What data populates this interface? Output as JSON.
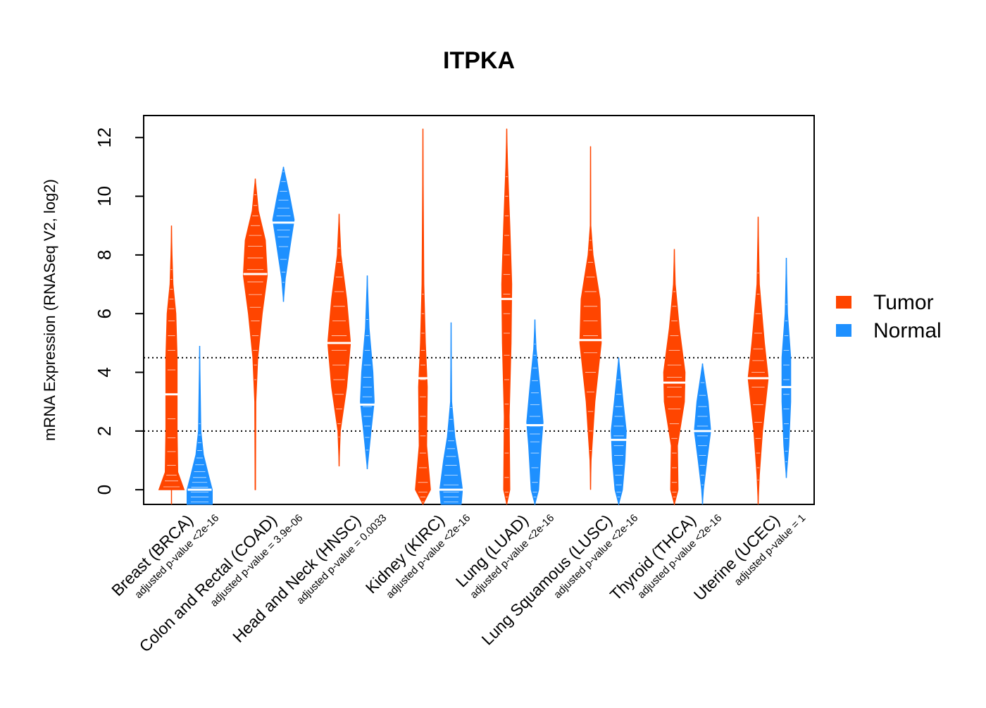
{
  "chart_data": {
    "type": "violin",
    "title": "ITPKA",
    "ylabel": "mRNA Expression (RNASeq V2, log2)",
    "xlabel": "",
    "ylim": [
      -0.5,
      12.75
    ],
    "yticks": [
      0,
      2,
      4,
      6,
      8,
      10,
      12
    ],
    "reference_lines": [
      2,
      4.5
    ],
    "legend": {
      "placement": "right",
      "items": [
        {
          "name": "Tumor",
          "color": "#ff4500"
        },
        {
          "name": "Normal",
          "color": "#1e90ff"
        }
      ]
    },
    "categories": [
      {
        "label": "Breast (BRCA)",
        "pvalue": "adjusted p-value <2e-16",
        "tumor": {
          "min": -0.5,
          "max": 9.0,
          "median": 3.25,
          "profile": [
            [
              0.0,
              1.0
            ],
            [
              0.6,
              0.5
            ],
            [
              2.0,
              0.45
            ],
            [
              4.5,
              0.45
            ],
            [
              6.0,
              0.35
            ],
            [
              7.0,
              0.12
            ],
            [
              8.0,
              0.05
            ],
            [
              9.0,
              0.0
            ]
          ]
        },
        "normal": {
          "min": -0.5,
          "max": 4.9,
          "median": 0.0,
          "profile": [
            [
              -0.5,
              1.0
            ],
            [
              0.0,
              1.0
            ],
            [
              0.5,
              0.7
            ],
            [
              1.2,
              0.3
            ],
            [
              2.0,
              0.1
            ],
            [
              3.5,
              0.05
            ],
            [
              4.9,
              0.0
            ]
          ]
        }
      },
      {
        "label": "Colon and Rectal (COAD)",
        "pvalue": "adjusted p-value = 3.9e-06",
        "tumor": {
          "min": 0.0,
          "max": 10.6,
          "median": 7.35,
          "profile": [
            [
              0.0,
              0.02
            ],
            [
              3.0,
              0.05
            ],
            [
              4.5,
              0.2
            ],
            [
              6.0,
              0.55
            ],
            [
              7.3,
              0.95
            ],
            [
              8.5,
              0.8
            ],
            [
              9.5,
              0.25
            ],
            [
              10.6,
              0.0
            ]
          ]
        },
        "normal": {
          "min": 6.4,
          "max": 11.0,
          "median": 9.1,
          "profile": [
            [
              6.4,
              0.0
            ],
            [
              7.2,
              0.15
            ],
            [
              8.5,
              0.6
            ],
            [
              9.2,
              0.85
            ],
            [
              10.0,
              0.5
            ],
            [
              11.0,
              0.0
            ]
          ]
        }
      },
      {
        "label": "Head and Neck (HNSC)",
        "pvalue": "adjusted p-value = 0.0033",
        "tumor": {
          "min": 0.8,
          "max": 9.4,
          "median": 5.0,
          "profile": [
            [
              0.8,
              0.0
            ],
            [
              2.0,
              0.1
            ],
            [
              3.5,
              0.6
            ],
            [
              5.0,
              0.9
            ],
            [
              6.5,
              0.6
            ],
            [
              8.0,
              0.15
            ],
            [
              9.4,
              0.0
            ]
          ]
        },
        "normal": {
          "min": 0.7,
          "max": 7.3,
          "median": 2.9,
          "profile": [
            [
              0.7,
              0.0
            ],
            [
              2.0,
              0.3
            ],
            [
              3.0,
              0.55
            ],
            [
              4.0,
              0.45
            ],
            [
              5.5,
              0.15
            ],
            [
              7.3,
              0.0
            ]
          ]
        }
      },
      {
        "label": "Kidney (KIRC)",
        "pvalue": "adjusted p-value <2e-16",
        "tumor": {
          "min": -0.5,
          "max": 12.3,
          "median": 3.8,
          "profile": [
            [
              -0.5,
              0.0
            ],
            [
              0.0,
              0.6
            ],
            [
              1.5,
              0.3
            ],
            [
              3.5,
              0.35
            ],
            [
              5.0,
              0.2
            ],
            [
              7.0,
              0.08
            ],
            [
              12.3,
              0.0
            ]
          ]
        },
        "normal": {
          "min": -0.5,
          "max": 5.7,
          "median": 0.0,
          "profile": [
            [
              -0.5,
              0.8
            ],
            [
              0.0,
              0.9
            ],
            [
              1.0,
              0.6
            ],
            [
              1.8,
              0.3
            ],
            [
              3.0,
              0.05
            ],
            [
              5.7,
              0.0
            ]
          ]
        }
      },
      {
        "label": "Lung (LUAD)",
        "pvalue": "adjusted p-value <2e-16",
        "tumor": {
          "min": -0.5,
          "max": 12.3,
          "median": 6.5,
          "profile": [
            [
              -0.5,
              0.0
            ],
            [
              0.0,
              0.25
            ],
            [
              2.5,
              0.2
            ],
            [
              5.0,
              0.35
            ],
            [
              7.0,
              0.4
            ],
            [
              9.0,
              0.25
            ],
            [
              11.0,
              0.08
            ],
            [
              12.3,
              0.0
            ]
          ]
        },
        "normal": {
          "min": -0.5,
          "max": 5.8,
          "median": 2.2,
          "profile": [
            [
              -0.5,
              0.0
            ],
            [
              0.0,
              0.3
            ],
            [
              1.5,
              0.5
            ],
            [
              2.3,
              0.65
            ],
            [
              3.5,
              0.4
            ],
            [
              4.8,
              0.1
            ],
            [
              5.8,
              0.0
            ]
          ]
        }
      },
      {
        "label": "Lung Squamous (LUSC)",
        "pvalue": "adjusted p-value <2e-16",
        "tumor": {
          "min": 0.0,
          "max": 11.7,
          "median": 5.1,
          "profile": [
            [
              0.0,
              0.0
            ],
            [
              1.0,
              0.05
            ],
            [
              3.0,
              0.35
            ],
            [
              5.0,
              0.85
            ],
            [
              6.5,
              0.75
            ],
            [
              8.0,
              0.2
            ],
            [
              9.0,
              0.03
            ],
            [
              11.7,
              0.0
            ]
          ]
        },
        "normal": {
          "min": -0.5,
          "max": 4.5,
          "median": 1.7,
          "profile": [
            [
              -0.5,
              0.0
            ],
            [
              0.0,
              0.3
            ],
            [
              1.0,
              0.5
            ],
            [
              2.0,
              0.6
            ],
            [
              3.0,
              0.35
            ],
            [
              4.5,
              0.0
            ]
          ]
        }
      },
      {
        "label": "Thyroid (THCA)",
        "pvalue": "adjusted p-value <2e-16",
        "tumor": {
          "min": -0.5,
          "max": 8.2,
          "median": 3.65,
          "profile": [
            [
              -0.5,
              0.0
            ],
            [
              0.0,
              0.3
            ],
            [
              1.5,
              0.25
            ],
            [
              3.0,
              0.8
            ],
            [
              4.0,
              0.85
            ],
            [
              5.5,
              0.4
            ],
            [
              7.0,
              0.08
            ],
            [
              8.2,
              0.0
            ]
          ]
        },
        "normal": {
          "min": -0.5,
          "max": 4.3,
          "median": 2.0,
          "profile": [
            [
              -0.5,
              0.0
            ],
            [
              0.0,
              0.08
            ],
            [
              1.0,
              0.35
            ],
            [
              2.0,
              0.65
            ],
            [
              3.0,
              0.45
            ],
            [
              4.3,
              0.0
            ]
          ]
        }
      },
      {
        "label": "Uterine (UCEC)",
        "pvalue": "adjusted p-value = 1",
        "tumor": {
          "min": -0.5,
          "max": 9.3,
          "median": 3.8,
          "profile": [
            [
              -0.5,
              0.0
            ],
            [
              0.5,
              0.1
            ],
            [
              2.0,
              0.35
            ],
            [
              3.8,
              0.8
            ],
            [
              5.0,
              0.5
            ],
            [
              7.0,
              0.1
            ],
            [
              9.3,
              0.0
            ]
          ]
        },
        "normal": {
          "min": 0.4,
          "max": 7.9,
          "median": 3.5,
          "profile": [
            [
              0.4,
              0.0
            ],
            [
              1.5,
              0.2
            ],
            [
              3.0,
              0.35
            ],
            [
              4.5,
              0.35
            ],
            [
              6.0,
              0.1
            ],
            [
              7.9,
              0.0
            ]
          ]
        }
      }
    ]
  }
}
